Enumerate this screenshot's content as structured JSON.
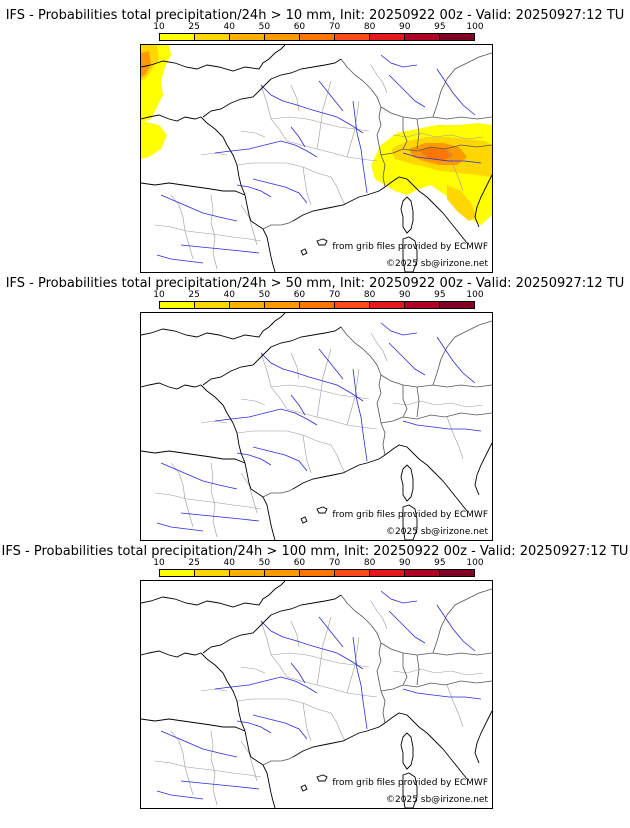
{
  "colorbar": {
    "ticks": [
      "10",
      "25",
      "40",
      "50",
      "60",
      "70",
      "80",
      "90",
      "95",
      "100"
    ],
    "colors": [
      "#ffff00",
      "#ffd700",
      "#ffb000",
      "#ff9900",
      "#ff7700",
      "#ff4a1a",
      "#e31a1c",
      "#b10026",
      "#800026"
    ]
  },
  "panels": [
    {
      "title": "IFS - Probabilities total precipitation/24h > 10 mm, Init: 20250922 00z - Valid: 20250927:12 TU",
      "threshold_mm": 10,
      "has_precip": true,
      "credit_grib": "from grib files provided by ECMWF",
      "credit_copy": "©2025 sb@irizone.net"
    },
    {
      "title": "IFS - Probabilities total precipitation/24h > 50 mm, Init: 20250922 00z - Valid: 20250927:12 TU",
      "threshold_mm": 50,
      "has_precip": false,
      "credit_grib": "from grib files provided by ECMWF",
      "credit_copy": "©2025 sb@irizone.net"
    },
    {
      "title": "IFS - Probabilities total precipitation/24h > 100 mm, Init: 20250922 00z - Valid: 20250927:12 TU",
      "threshold_mm": 100,
      "has_precip": false,
      "credit_grib": "from grib files provided by ECMWF",
      "credit_copy": "©2025 sb@irizone.net"
    }
  ]
}
